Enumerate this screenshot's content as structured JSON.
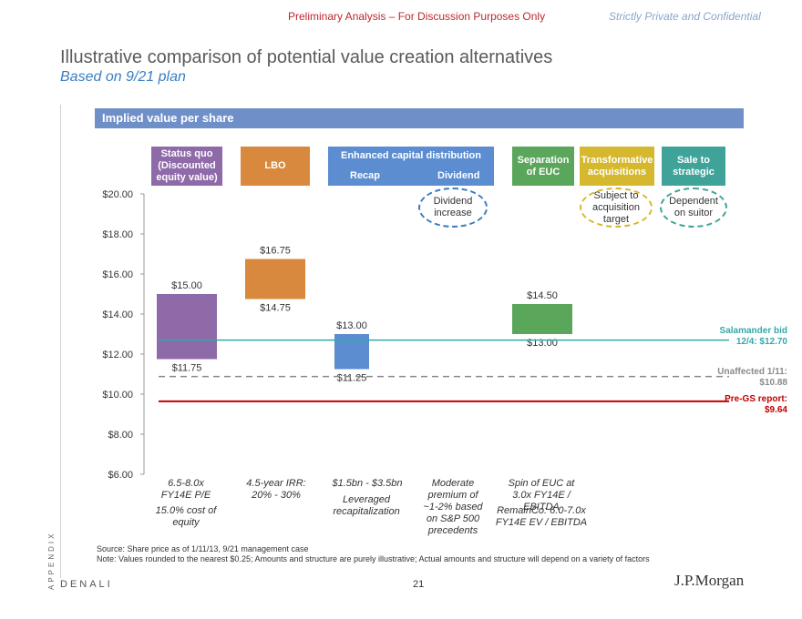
{
  "header": {
    "left": "Preliminary Analysis – For Discussion Purposes Only",
    "right": "Strictly Private and Confidential"
  },
  "title": "Illustrative comparison of potential value creation alternatives",
  "subtitle": "Based on 9/21 plan",
  "banner": "Implied value per share",
  "column_headers": {
    "status_quo": "Status quo (Discounted equity value)",
    "lbo": "LBO",
    "enhanced": "Enhanced capital distribution",
    "recap": "Recap",
    "dividend": "Dividend",
    "separation": "Separation of EUC",
    "transformative": "Transformative acquisitions",
    "sale": "Sale to strategic"
  },
  "bubbles": {
    "dividend": "Dividend increase",
    "transformative": "Subject to acquisition target",
    "sale": "Dependent on suitor"
  },
  "notes": {
    "status_quo_1": "6.5-8.0x FY14E P/E",
    "status_quo_2": "15.0% cost of equity",
    "lbo": "4.5-year IRR: 20% - 30%",
    "recap_1": "$1.5bn - $3.5bn",
    "recap_2": "Leveraged recapitalization",
    "dividend": "Moderate premium of ~1-2% based on S&P 500 precedents",
    "separation_1": "Spin of EUC at 3.0x FY14E / EBITDA",
    "separation_2": "RemainCo: 6.0-7.0x FY14E EV / EBITDA"
  },
  "reference_lines": {
    "salamander": {
      "label": "Salamander bid 12/4: $12.70",
      "value": 12.7,
      "color": "#35a8a8"
    },
    "unaffected": {
      "label": "Unaffected 1/11: $10.88",
      "value": 10.88,
      "color": "#8a8a8a"
    },
    "pregs": {
      "label": "Pre-GS report: $9.64",
      "value": 9.64,
      "color": "#c00000"
    }
  },
  "chart_data": {
    "type": "bar",
    "subtype": "floating_range",
    "title": "Implied value per share",
    "ylim": [
      6,
      20
    ],
    "yticks": [
      "$6.00",
      "$8.00",
      "$10.00",
      "$12.00",
      "$14.00",
      "$16.00",
      "$18.00",
      "$20.00"
    ],
    "ytick_values": [
      6,
      8,
      10,
      12,
      14,
      16,
      18,
      20
    ],
    "categories": [
      "Status quo",
      "LBO",
      "Recap",
      "Dividend",
      "Separation of EUC",
      "Transformative acquisitions",
      "Sale to strategic"
    ],
    "series": [
      {
        "name": "Status quo",
        "low": 11.75,
        "high": 15.0,
        "low_label": "$11.75",
        "high_label": "$15.00",
        "color": "#8e6aa8"
      },
      {
        "name": "LBO",
        "low": 14.75,
        "high": 16.75,
        "low_label": "$14.75",
        "high_label": "$16.75",
        "color": "#d9893e"
      },
      {
        "name": "Recap",
        "low": 11.25,
        "high": 13.0,
        "low_label": "$11.25",
        "high_label": "$13.00",
        "color": "#5b8dd0"
      },
      {
        "name": "Separation of EUC",
        "low": 13.0,
        "high": 14.5,
        "low_label": "$13.00",
        "high_label": "$14.50",
        "color": "#5aa65a"
      }
    ]
  },
  "colors": {
    "status_quo": "#8e6aa8",
    "lbo": "#d9893e",
    "enhanced": "#5b8dd0",
    "separation": "#5aa65a",
    "transformative": "#d6b82e",
    "sale": "#3fa39a",
    "bubble_blue": "#3a7ec0",
    "bubble_yellow": "#d6b82e",
    "bubble_teal": "#3fa39a"
  },
  "source_text": "Source: Share price as of 1/11/13, 9/21 management case",
  "note_text": "Note: Values rounded to the nearest $0.25; Amounts and structure are purely illustrative; Actual amounts and structure will depend on a variety of factors",
  "footer": {
    "appendix": "APPENDIX",
    "company": "DENALI",
    "page": "21",
    "logo": "J.P.Morgan"
  }
}
